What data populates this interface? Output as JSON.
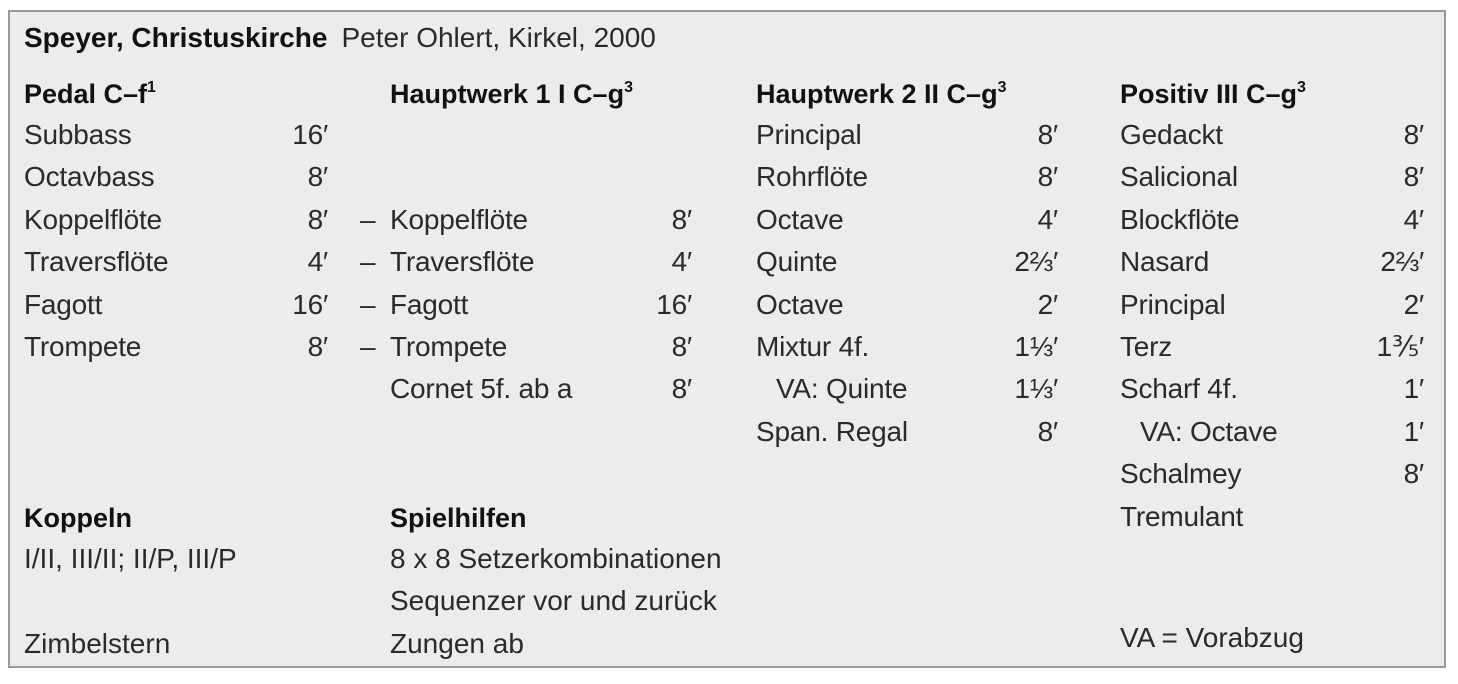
{
  "title": {
    "church": "Speyer, Christuskirche",
    "builder": "Peter Ohlert, Kirkel, 2000"
  },
  "divisions": [
    {
      "name": "Pedal  C–f",
      "sup": "1",
      "stops": [
        {
          "name": "Subbass",
          "pitch": "16′"
        },
        {
          "name": "Octavbass",
          "pitch": "8′"
        },
        {
          "name": "Koppelflöte",
          "pitch": "8′"
        },
        {
          "name": "Traversflöte",
          "pitch": "4′"
        },
        {
          "name": "Fagott",
          "pitch": "16′"
        },
        {
          "name": "Trompete",
          "pitch": "8′"
        }
      ]
    },
    {
      "name": "Hauptwerk 1  I  C–g",
      "sup": "3",
      "stops": [
        {
          "name": "Koppelflöte",
          "pitch": "8′",
          "transmission": "–"
        },
        {
          "name": "Traversflöte",
          "pitch": "4′",
          "transmission": "–"
        },
        {
          "name": "Fagott",
          "pitch": "16′",
          "transmission": "–"
        },
        {
          "name": "Trompete",
          "pitch": "8′",
          "transmission": "–"
        },
        {
          "name": "Cornet 5f. ab a",
          "pitch": "8′"
        }
      ]
    },
    {
      "name": "Hauptwerk 2  II  C–g",
      "sup": "3",
      "stops": [
        {
          "name": "Principal",
          "pitch": "8′"
        },
        {
          "name": "Rohrflöte",
          "pitch": "8′"
        },
        {
          "name": "Octave",
          "pitch": "4′"
        },
        {
          "name": "Quinte",
          "pitch": "2⅔′"
        },
        {
          "name": "Octave",
          "pitch": "2′"
        },
        {
          "name": "Mixtur 4f.",
          "pitch": "1⅓′"
        },
        {
          "name": "VA: Quinte",
          "pitch": "1⅓′",
          "indent": true
        },
        {
          "name": "Span. Regal",
          "pitch": "8′"
        }
      ]
    },
    {
      "name": "Positiv  III  C–g",
      "sup": "3",
      "stops": [
        {
          "name": "Gedackt",
          "pitch": "8′"
        },
        {
          "name": "Salicional",
          "pitch": "8′"
        },
        {
          "name": "Blockflöte",
          "pitch": "4′"
        },
        {
          "name": "Nasard",
          "pitch": "2⅔′"
        },
        {
          "name": "Principal",
          "pitch": "2′"
        },
        {
          "name": "Terz",
          "pitch": "1⅗′"
        },
        {
          "name": "Scharf 4f.",
          "pitch": "1′"
        },
        {
          "name": "VA: Octave",
          "pitch": "1′",
          "indent": true
        },
        {
          "name": "Schalmey",
          "pitch": "8′"
        },
        {
          "name": "Tremulant",
          "pitch": ""
        }
      ]
    }
  ],
  "koppeln": {
    "heading": "Koppeln",
    "items": [
      "I/II, III/II; II/P, III/P",
      "",
      "Zimbelstern"
    ]
  },
  "spielhilfen": {
    "heading": "Spielhilfen",
    "items": [
      "8 x 8 Setzerkombinationen",
      "Sequenzer vor und zurück",
      "Zungen ab"
    ]
  },
  "legend": "VA = Vorabzug"
}
